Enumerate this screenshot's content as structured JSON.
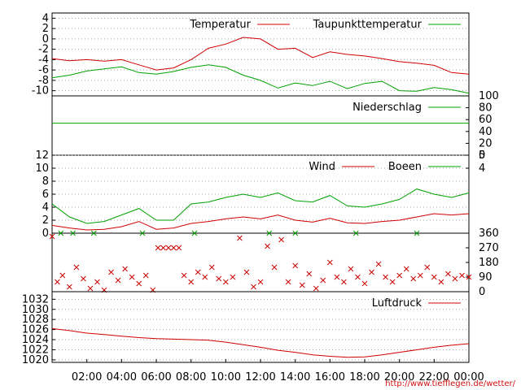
{
  "source_url": "http://www.tiefflegen.de/wetter/",
  "colors": {
    "red": "#d00000",
    "green": "#00a000"
  },
  "x_ticks": [
    "02:00",
    "04:00",
    "06:00",
    "08:00",
    "10:00",
    "12:00",
    "14:00",
    "16:00",
    "18:00",
    "20:00",
    "22:00",
    "00:00"
  ],
  "chart_data": [
    {
      "type": "line",
      "panel": "temperature",
      "y_ticks": [
        4,
        2,
        0,
        -2,
        -4,
        -6,
        -8,
        -10
      ],
      "ylim": [
        -11,
        5
      ],
      "grid": true,
      "legend_placement": "top",
      "series": [
        {
          "name": "Temperatur",
          "color": "#d00000",
          "x": [
            0,
            1,
            2,
            3,
            4,
            5,
            6,
            7,
            8,
            9,
            10,
            11,
            12,
            13,
            14,
            15,
            16,
            17,
            18,
            19,
            20,
            21,
            22,
            23,
            24
          ],
          "values": [
            -3.8,
            -4.2,
            -4.0,
            -4.3,
            -4.0,
            -5.0,
            -6.0,
            -5.6,
            -4.0,
            -1.8,
            -1.0,
            0.3,
            0.0,
            -2.0,
            -1.8,
            -3.6,
            -2.5,
            -3.0,
            -3.3,
            -3.8,
            -4.4,
            -4.7,
            -5.1,
            -6.5,
            -6.8
          ]
        },
        {
          "name": "Taupunkttemperatur",
          "color": "#00a000",
          "x": [
            0,
            1,
            2,
            3,
            4,
            5,
            6,
            7,
            8,
            9,
            10,
            11,
            12,
            13,
            14,
            15,
            16,
            17,
            18,
            19,
            20,
            21,
            22,
            23,
            24
          ],
          "values": [
            -7.5,
            -7.0,
            -6.2,
            -5.8,
            -5.4,
            -6.5,
            -6.8,
            -6.3,
            -5.5,
            -5.0,
            -5.5,
            -7.0,
            -8.0,
            -9.5,
            -8.5,
            -9.0,
            -8.2,
            -9.6,
            -8.6,
            -8.2,
            -10.0,
            -10.1,
            -9.4,
            -9.8,
            -10.5
          ]
        }
      ]
    },
    {
      "type": "line",
      "panel": "precipitation",
      "y_ticks": [
        100,
        80,
        60,
        40,
        20,
        0
      ],
      "ylim": [
        0,
        100
      ],
      "legend_placement": "top-right",
      "series": [
        {
          "name": "Niederschlag",
          "color": "#00a000",
          "x": [
            0,
            24
          ],
          "values": [
            54,
            54
          ]
        }
      ]
    },
    {
      "type": "line",
      "panel": "wind",
      "y_ticks_left": [
        12,
        10,
        8,
        6,
        4,
        2,
        0
      ],
      "y_ticks_right": [
        5,
        4
      ],
      "ylim": [
        0,
        12
      ],
      "grid": true,
      "legend_placement": "top-right",
      "series": [
        {
          "name": "Wind",
          "color": "#d00000",
          "x": [
            0,
            1,
            2,
            3,
            4,
            5,
            6,
            7,
            8,
            9,
            10,
            11,
            12,
            13,
            14,
            15,
            16,
            17,
            18,
            19,
            20,
            21,
            22,
            23,
            24
          ],
          "values": [
            1.2,
            0.8,
            0.5,
            0.6,
            1.0,
            1.8,
            0.6,
            0.8,
            1.5,
            1.8,
            2.2,
            2.5,
            2.2,
            2.8,
            2.0,
            1.7,
            2.3,
            1.6,
            1.5,
            1.8,
            2.0,
            2.5,
            3.0,
            2.8,
            3.0
          ]
        },
        {
          "name": "Boeen",
          "color": "#00a000",
          "x": [
            0,
            1,
            2,
            3,
            4,
            5,
            6,
            7,
            8,
            9,
            10,
            11,
            12,
            13,
            14,
            15,
            16,
            17,
            18,
            19,
            20,
            21,
            22,
            23,
            24
          ],
          "values": [
            4.5,
            2.5,
            1.5,
            1.8,
            2.8,
            3.8,
            2.0,
            2.0,
            4.5,
            4.8,
            5.5,
            6.0,
            5.5,
            6.2,
            5.0,
            4.8,
            5.8,
            4.2,
            4.0,
            4.5,
            5.2,
            6.8,
            6.0,
            5.5,
            6.2
          ]
        }
      ]
    },
    {
      "type": "scatter",
      "panel": "wind_direction",
      "y_ticks": [
        360,
        270,
        180,
        90,
        0
      ],
      "ylim": [
        0,
        360
      ],
      "series": [
        {
          "name": "",
          "color": "#d00000",
          "x": [
            0,
            0.3,
            0.6,
            1.0,
            1.4,
            1.8,
            2.2,
            2.6,
            3.0,
            3.4,
            3.8,
            4.2,
            4.6,
            5.0,
            5.4,
            5.8,
            6.1,
            6.4,
            6.7,
            7.0,
            7.3,
            7.6,
            8.0,
            8.4,
            8.8,
            9.2,
            9.6,
            10.0,
            10.4,
            10.8,
            11.2,
            11.6,
            12.0,
            12.4,
            12.8,
            13.2,
            13.6,
            14.0,
            14.4,
            14.8,
            15.2,
            15.6,
            16.0,
            16.4,
            16.8,
            17.2,
            17.6,
            18.0,
            18.4,
            18.8,
            19.2,
            19.6,
            20.0,
            20.4,
            20.8,
            21.2,
            21.6,
            22.0,
            22.4,
            22.8,
            23.2,
            23.6,
            24.0
          ],
          "values": [
            340,
            60,
            100,
            30,
            150,
            80,
            20,
            60,
            10,
            120,
            70,
            140,
            90,
            50,
            100,
            10,
            270,
            270,
            270,
            270,
            270,
            100,
            60,
            120,
            90,
            150,
            80,
            60,
            90,
            330,
            120,
            30,
            60,
            280,
            150,
            320,
            60,
            160,
            40,
            110,
            20,
            70,
            180,
            90,
            60,
            140,
            90,
            50,
            120,
            170,
            90,
            60,
            100,
            140,
            80,
            100,
            150,
            90,
            60,
            110,
            80,
            100,
            90
          ]
        },
        {
          "name": "",
          "color": "#00a000",
          "x": [
            0.5,
            1.2,
            2.4,
            5.2,
            8.2,
            12.5,
            14.0,
            17.5,
            21.0
          ],
          "values": [
            360,
            360,
            360,
            360,
            360,
            360,
            360,
            360,
            360
          ]
        }
      ]
    },
    {
      "type": "line",
      "panel": "pressure",
      "y_ticks": [
        1032,
        1030,
        1028,
        1026,
        1024,
        1022,
        1020
      ],
      "ylim": [
        1019.5,
        1033.5
      ],
      "grid": true,
      "legend_placement": "top-right",
      "series": [
        {
          "name": "Luftdruck",
          "color": "#d00000",
          "x": [
            0,
            1,
            2,
            3,
            4,
            5,
            6,
            7,
            8,
            9,
            10,
            11,
            12,
            13,
            14,
            15,
            16,
            17,
            18,
            19,
            20,
            21,
            22,
            23,
            24
          ],
          "values": [
            1026.2,
            1025.8,
            1025.3,
            1025.0,
            1024.7,
            1024.4,
            1024.2,
            1024.1,
            1024.0,
            1023.9,
            1023.5,
            1023.0,
            1022.5,
            1021.9,
            1021.5,
            1021.0,
            1020.7,
            1020.5,
            1020.6,
            1021.0,
            1021.5,
            1022.0,
            1022.5,
            1022.9,
            1023.2
          ]
        }
      ]
    }
  ]
}
